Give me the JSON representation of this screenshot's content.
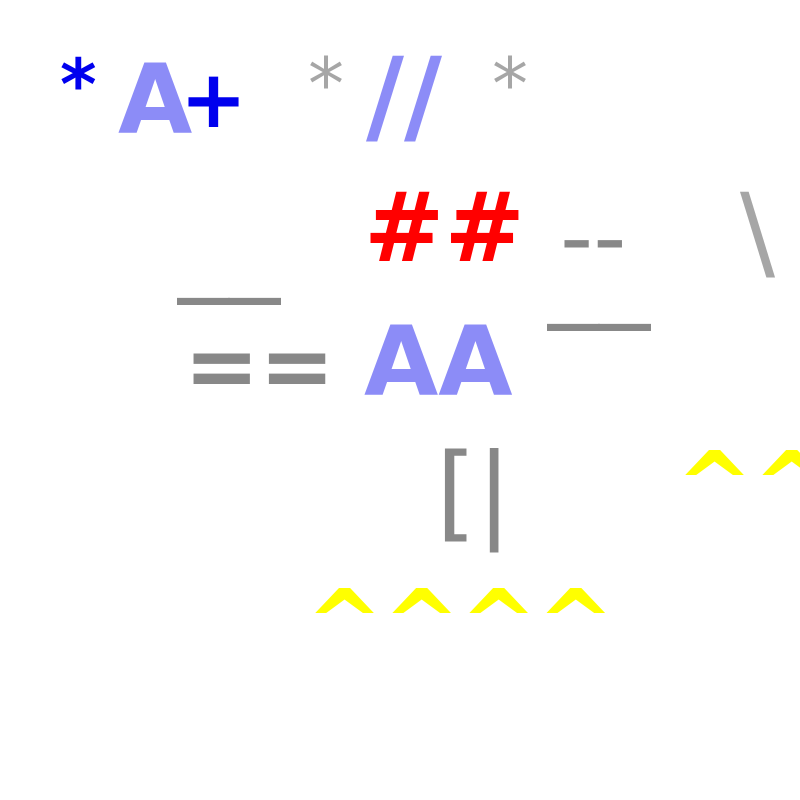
{
  "glyphs": {
    "g1": {
      "text": "*",
      "color": "#0000ee"
    },
    "g2": {
      "text": "A",
      "color": "#8c8cf7"
    },
    "g3": {
      "text": "+",
      "color": "#0000ee"
    },
    "g4": {
      "text": "*",
      "color": "#a6a6a6"
    },
    "g5": {
      "text": "//",
      "color": "#8c8cf7"
    },
    "g6": {
      "text": "*",
      "color": "#a6a6a6"
    },
    "g7": {
      "text": "__",
      "color": "#888888"
    },
    "g8": {
      "text": "##",
      "color": "#ff0000"
    },
    "g9": {
      "text": "--",
      "color": "#888888"
    },
    "g10": {
      "text": "__",
      "color": "#888888"
    },
    "g11": {
      "text": "\\",
      "color": "#a6a6a6"
    },
    "g12": {
      "text": "==",
      "color": "#888888"
    },
    "g13": {
      "text": "AA",
      "color": "#8c8cf7"
    },
    "g14": {
      "text": "[|",
      "color": "#888888"
    },
    "g15": {
      "text": "^^",
      "color": "#ffff00"
    },
    "g16": {
      "text": "^^^^",
      "color": "#ffff00"
    }
  }
}
